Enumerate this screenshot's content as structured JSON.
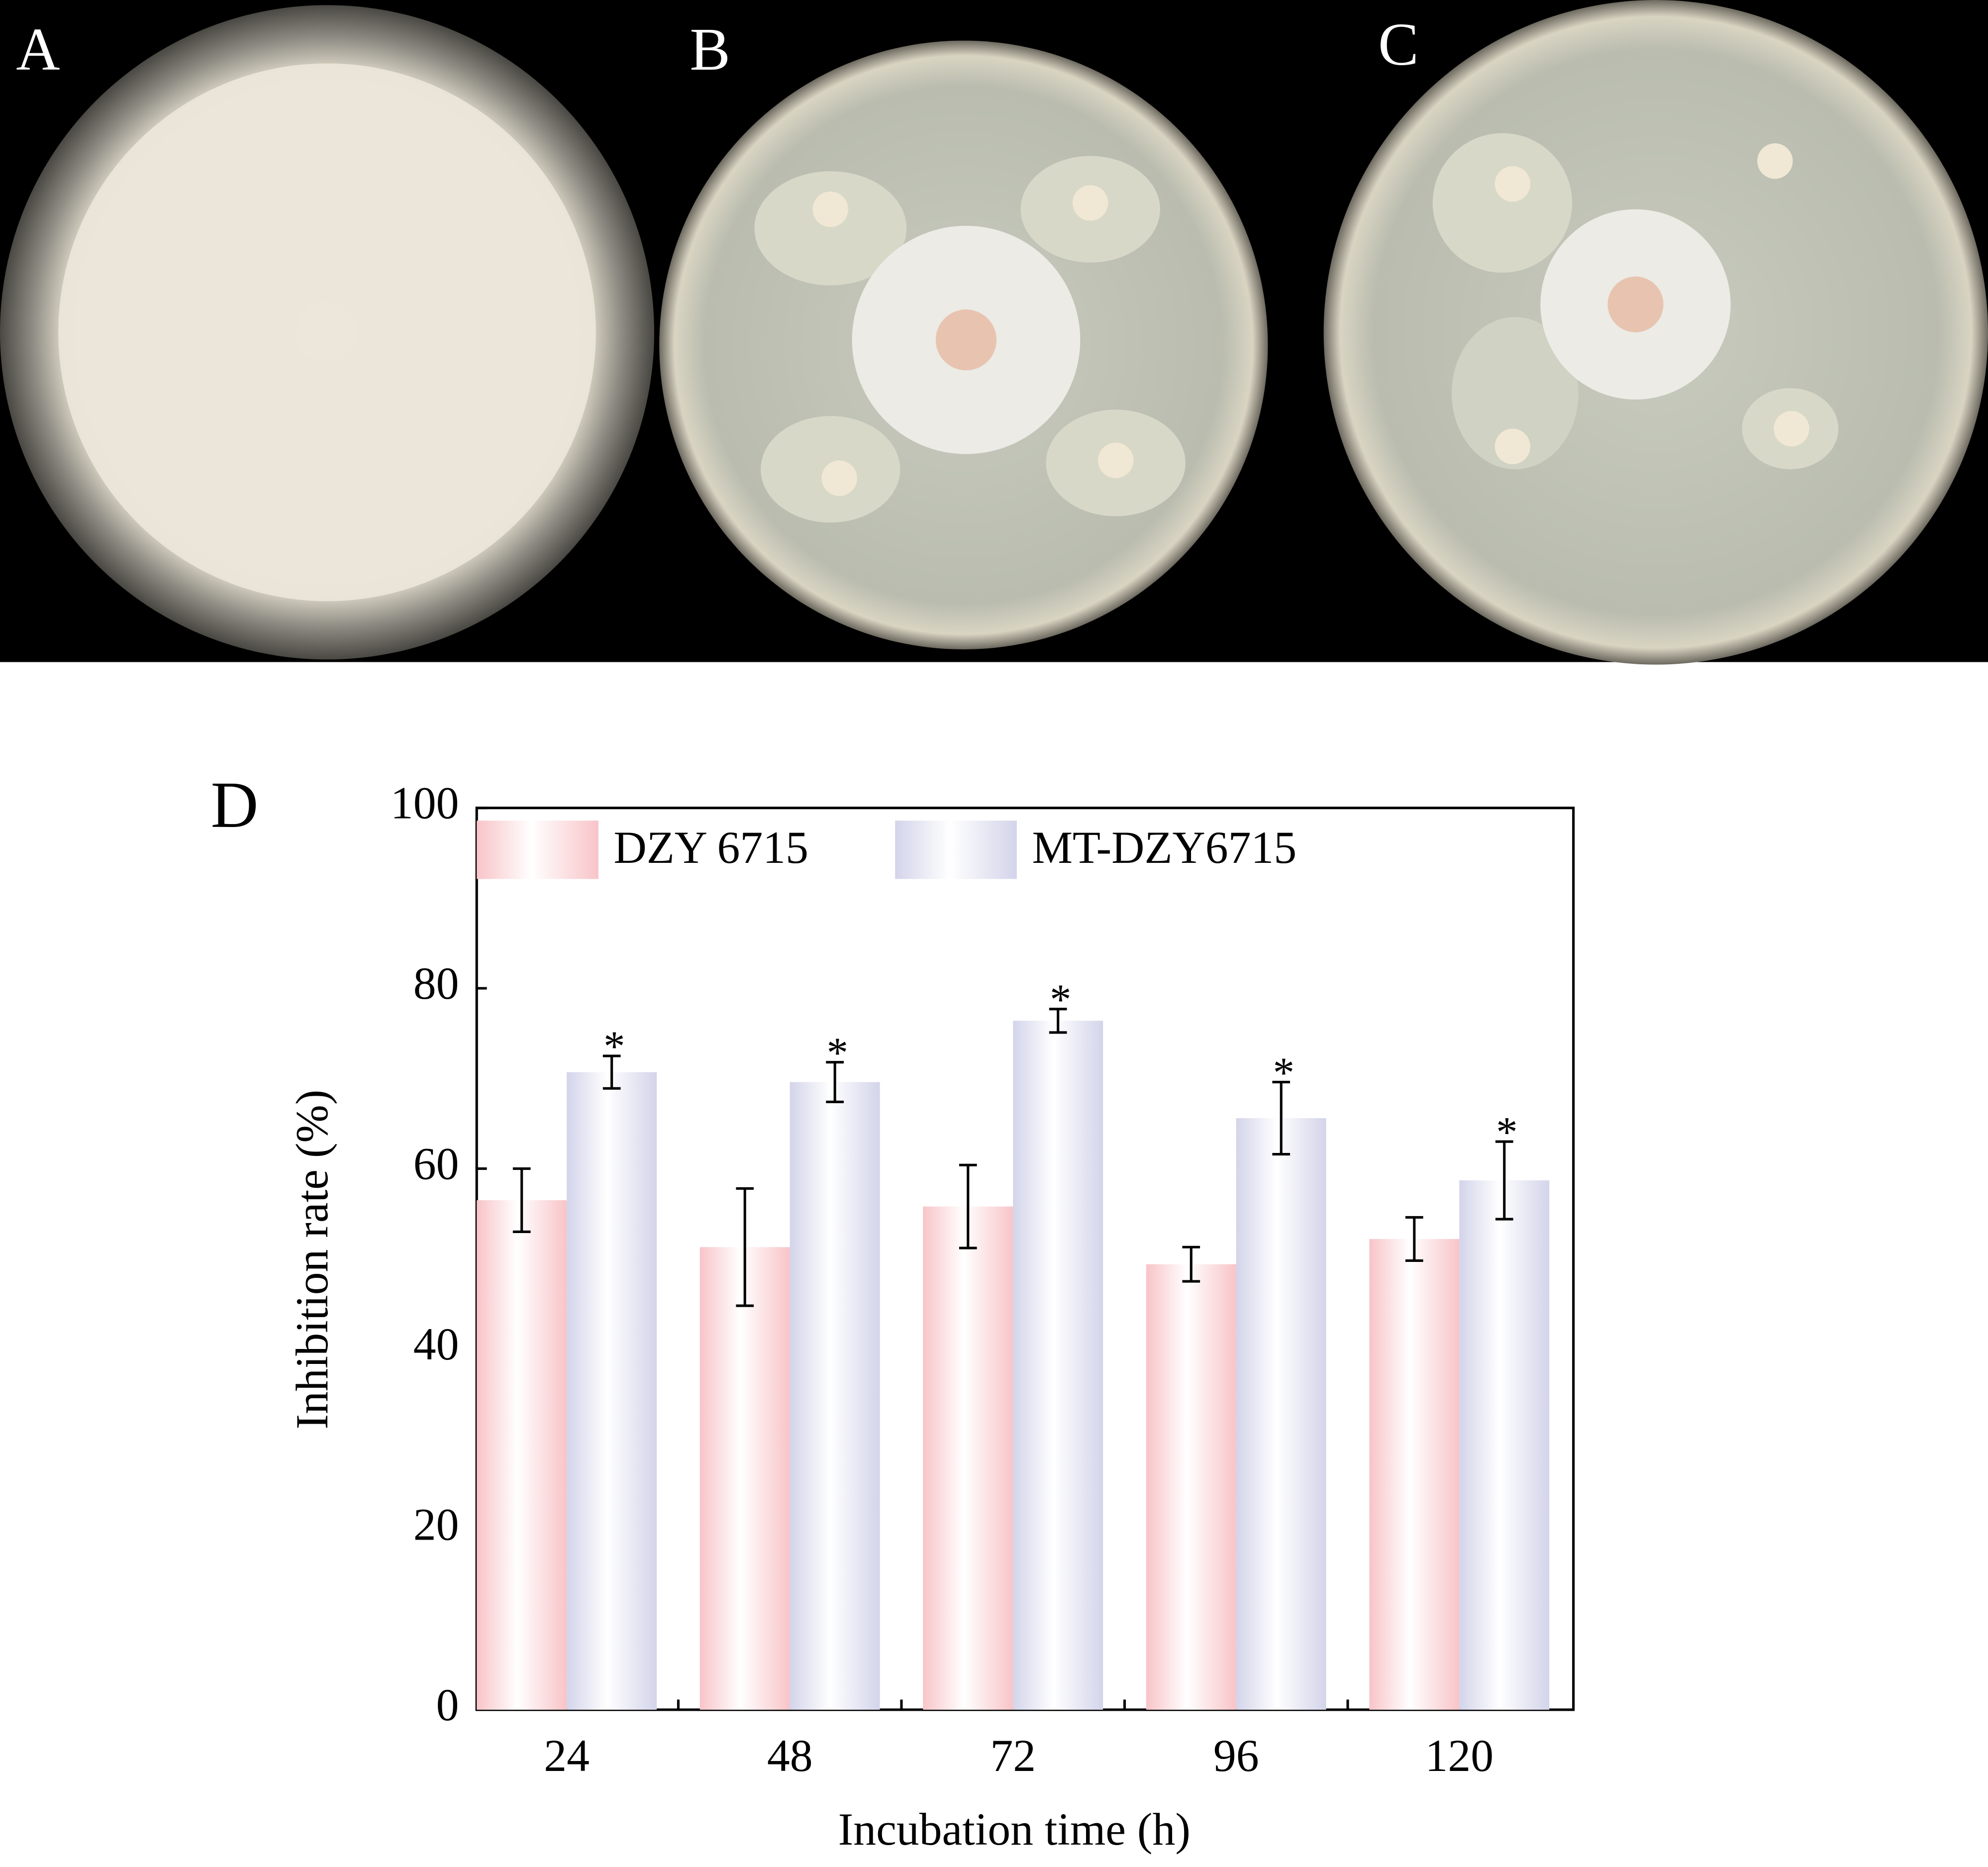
{
  "photo_labels": [
    "A",
    "B",
    "C"
  ],
  "chart_data": {
    "type": "bar",
    "panel_label": "D",
    "x_label": "Incubation time (h)",
    "y_label": "Inhibition rate  (%)",
    "categories": [
      "24",
      "48",
      "72",
      "96",
      "120"
    ],
    "series": [
      {
        "name": "DZY 6715",
        "color": "#f8c4c8",
        "values": [
          56.5,
          51.3,
          55.8,
          49.4,
          52.2
        ],
        "errors": [
          3.5,
          6.5,
          4.6,
          1.9,
          2.4
        ]
      },
      {
        "name": "MT-DZY6715",
        "color": "#d3d4ea",
        "values": [
          70.7,
          69.6,
          76.4,
          65.6,
          58.7
        ],
        "errors": [
          1.8,
          2.2,
          1.3,
          4.0,
          4.3
        ],
        "annotations": [
          "*",
          "*",
          "*",
          "*",
          "*"
        ]
      }
    ],
    "ylim": [
      0,
      100
    ],
    "yticks": [
      0,
      20,
      40,
      60,
      80,
      100
    ],
    "grid": false,
    "legend": "top-left"
  }
}
